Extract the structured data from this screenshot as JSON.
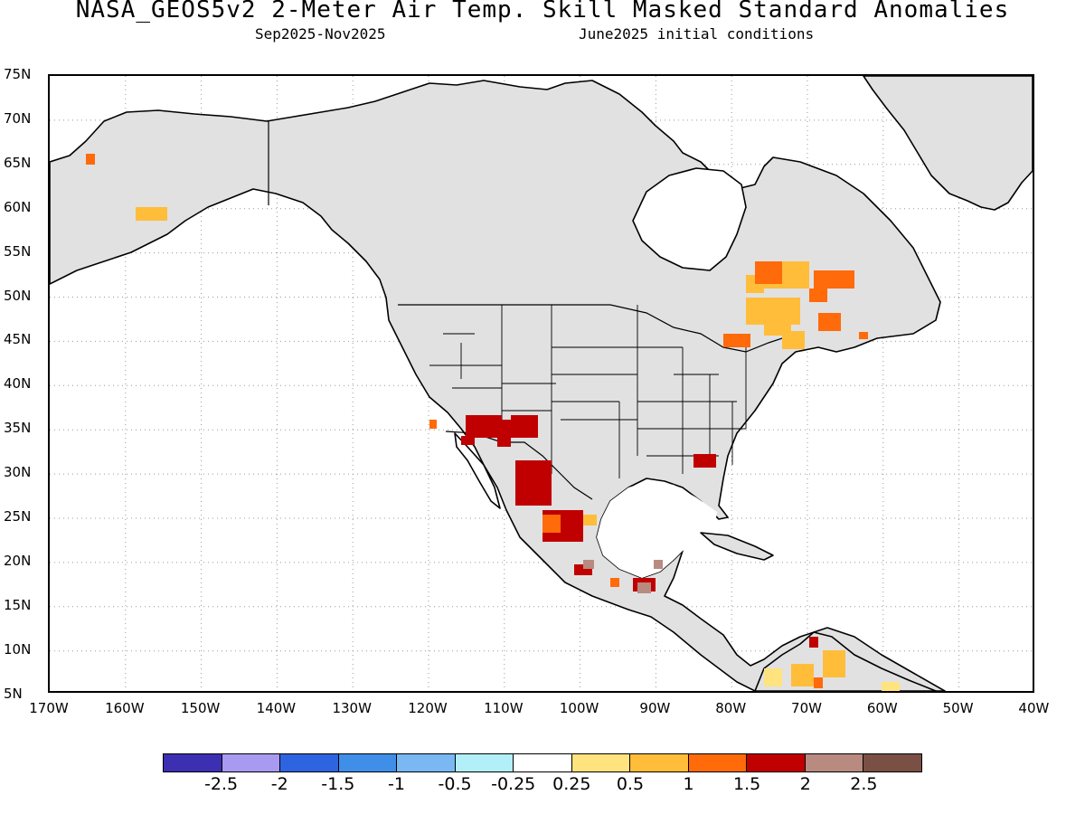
{
  "title": "NASA_GEOS5v2 2-Meter Air Temp. Skill Masked Standard Anomalies",
  "subtitle_left": "Sep2025-Nov2025",
  "subtitle_right": "June2025 initial conditions",
  "y_ticks": [
    "75N",
    "70N",
    "65N",
    "60N",
    "55N",
    "50N",
    "45N",
    "40N",
    "35N",
    "30N",
    "25N",
    "20N",
    "15N",
    "10N",
    "5N"
  ],
  "x_ticks": [
    "170W",
    "160W",
    "150W",
    "140W",
    "130W",
    "120W",
    "110W",
    "100W",
    "90W",
    "80W",
    "70W",
    "60W",
    "50W",
    "40W"
  ],
  "colorbar": {
    "colors": [
      "#3d2fb2",
      "#a89af0",
      "#2f64e0",
      "#3f8ee8",
      "#79b8f3",
      "#b2eff8",
      "#ffffff",
      "#ffe37f",
      "#ffbd3a",
      "#ff6a0a",
      "#c00000",
      "#b88a80",
      "#7a5045"
    ],
    "labels": [
      "-2.5",
      "-2",
      "-1.5",
      "-1",
      "-0.5",
      "-0.25",
      "0.25",
      "0.5",
      "1",
      "1.5",
      "2",
      "2.5"
    ]
  },
  "map_colors": {
    "land_masked": "#e1e1e1",
    "ocean": "#ffffff",
    "coast": "#000000",
    "anom_1_1_5": "#ff6a0a",
    "anom_0_5_1": "#ffbd3a",
    "anom_2_2_5": "#b88a80",
    "anom_1_5_2": "#c00000",
    "anom_0_25_0_5": "#ffe37f"
  }
}
